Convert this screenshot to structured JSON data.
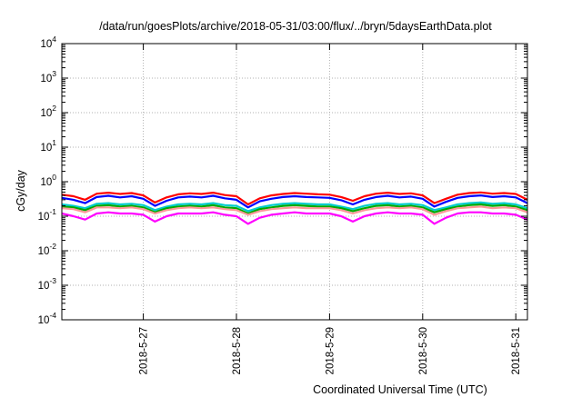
{
  "chart_data": {
    "type": "line",
    "title": "/data/run/goesPlots/archive/2018-05-31/03:00/flux/../bryn/5daysEarthData.plot",
    "xlabel": "Coordinated Universal Time (UTC)",
    "ylabel": "cGy/day",
    "yscale": "log",
    "ylim": [
      0.0001,
      10000
    ],
    "y_ticks": [
      {
        "base": "10",
        "exp": "-4"
      },
      {
        "base": "10",
        "exp": "-3"
      },
      {
        "base": "10",
        "exp": "-2"
      },
      {
        "base": "10",
        "exp": "-1"
      },
      {
        "base": "10",
        "exp": "0"
      },
      {
        "base": "10",
        "exp": "1"
      },
      {
        "base": "10",
        "exp": "2"
      },
      {
        "base": "10",
        "exp": "3"
      },
      {
        "base": "10",
        "exp": "4"
      }
    ],
    "xlim": [
      "2018-05-26 03:00",
      "2018-05-31 03:00"
    ],
    "x_ticks": [
      "2018-5-27",
      "2018-5-28",
      "2018-5-29",
      "2018-5-30",
      "2018-5-31"
    ],
    "grid": true,
    "series": [
      {
        "color": "#ff0000",
        "values": [
          0.42,
          0.38,
          0.3,
          0.45,
          0.48,
          0.44,
          0.47,
          0.4,
          0.25,
          0.35,
          0.43,
          0.46,
          0.44,
          0.48,
          0.41,
          0.38,
          0.22,
          0.33,
          0.4,
          0.44,
          0.47,
          0.45,
          0.43,
          0.42,
          0.36,
          0.28,
          0.38,
          0.45,
          0.48,
          0.44,
          0.46,
          0.4,
          0.24,
          0.32,
          0.42,
          0.47,
          0.49,
          0.45,
          0.47,
          0.44,
          0.3
        ]
      },
      {
        "color": "#0000ff",
        "values": [
          0.34,
          0.3,
          0.24,
          0.36,
          0.39,
          0.35,
          0.38,
          0.32,
          0.2,
          0.28,
          0.35,
          0.37,
          0.35,
          0.39,
          0.33,
          0.3,
          0.18,
          0.27,
          0.32,
          0.36,
          0.38,
          0.36,
          0.35,
          0.34,
          0.29,
          0.22,
          0.3,
          0.36,
          0.39,
          0.35,
          0.37,
          0.32,
          0.19,
          0.26,
          0.34,
          0.38,
          0.4,
          0.36,
          0.38,
          0.35,
          0.24
        ]
      },
      {
        "color": "#00cccc",
        "values": [
          0.22,
          0.2,
          0.17,
          0.23,
          0.24,
          0.22,
          0.23,
          0.21,
          0.15,
          0.19,
          0.22,
          0.23,
          0.22,
          0.24,
          0.21,
          0.2,
          0.14,
          0.18,
          0.21,
          0.23,
          0.24,
          0.23,
          0.22,
          0.22,
          0.19,
          0.16,
          0.2,
          0.23,
          0.24,
          0.22,
          0.23,
          0.21,
          0.15,
          0.18,
          0.22,
          0.24,
          0.25,
          0.23,
          0.24,
          0.22,
          0.17
        ]
      },
      {
        "color": "#00aa00",
        "values": [
          0.19,
          0.18,
          0.15,
          0.2,
          0.21,
          0.19,
          0.2,
          0.18,
          0.13,
          0.17,
          0.19,
          0.2,
          0.19,
          0.21,
          0.18,
          0.17,
          0.12,
          0.16,
          0.18,
          0.2,
          0.21,
          0.2,
          0.19,
          0.19,
          0.17,
          0.14,
          0.17,
          0.2,
          0.21,
          0.19,
          0.2,
          0.18,
          0.13,
          0.16,
          0.19,
          0.21,
          0.22,
          0.2,
          0.21,
          0.19,
          0.15
        ]
      },
      {
        "color": "#ff9999",
        "values": [
          0.17,
          0.16,
          0.13,
          0.18,
          0.18,
          0.17,
          0.18,
          0.16,
          0.12,
          0.15,
          0.17,
          0.18,
          0.17,
          0.18,
          0.16,
          0.15,
          0.11,
          0.14,
          0.16,
          0.17,
          0.18,
          0.17,
          0.17,
          0.17,
          0.15,
          0.12,
          0.15,
          0.17,
          0.18,
          0.17,
          0.18,
          0.16,
          0.11,
          0.14,
          0.17,
          0.18,
          0.19,
          0.17,
          0.18,
          0.17,
          0.13
        ]
      },
      {
        "color": "#ff00ff",
        "values": [
          0.12,
          0.1,
          0.08,
          0.12,
          0.13,
          0.12,
          0.12,
          0.11,
          0.07,
          0.1,
          0.12,
          0.12,
          0.12,
          0.13,
          0.11,
          0.1,
          0.06,
          0.09,
          0.11,
          0.12,
          0.13,
          0.12,
          0.12,
          0.12,
          0.1,
          0.07,
          0.1,
          0.12,
          0.13,
          0.12,
          0.12,
          0.11,
          0.06,
          0.09,
          0.12,
          0.13,
          0.13,
          0.12,
          0.12,
          0.11,
          0.08
        ]
      }
    ]
  }
}
